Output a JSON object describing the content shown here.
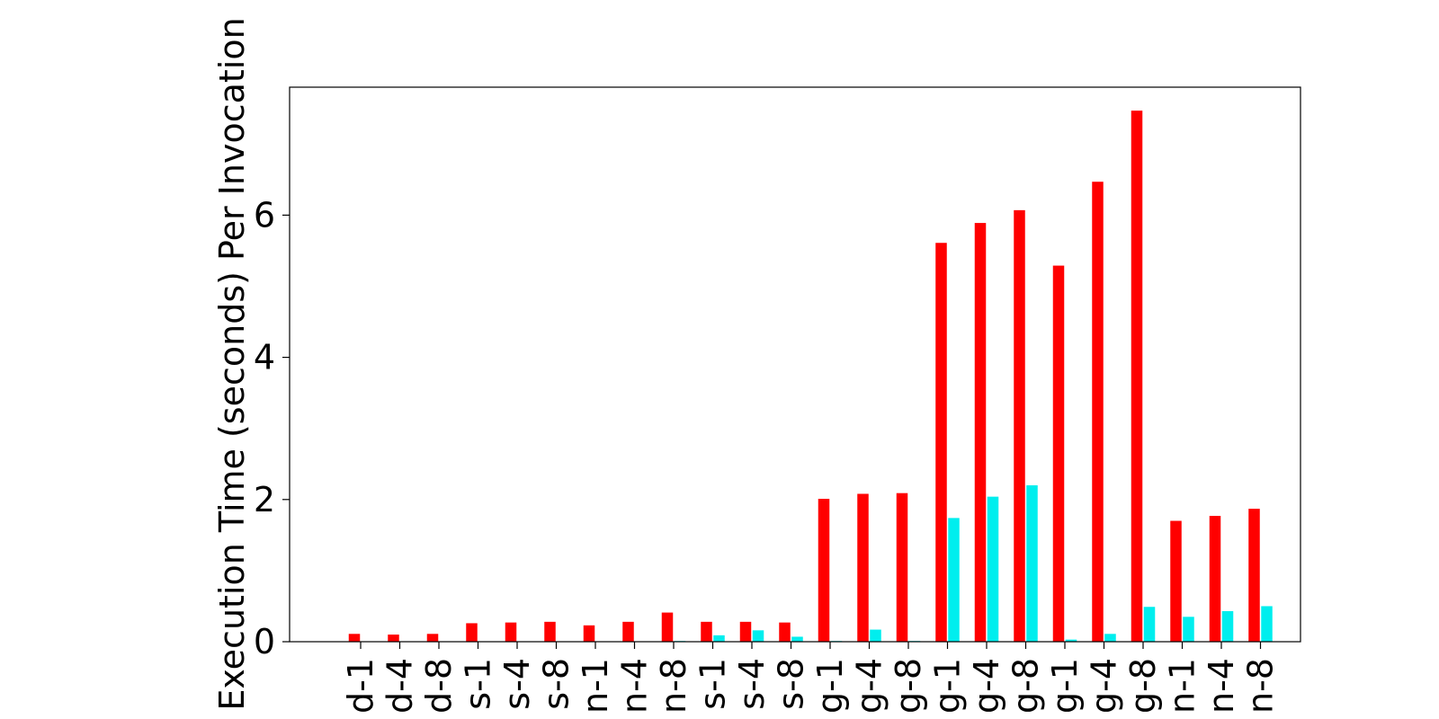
{
  "chart_data": {
    "type": "bar",
    "title": "",
    "xlabel": "",
    "ylabel": "Execution Time (seconds) Per Invocation",
    "ylim": [
      0,
      7.8
    ],
    "yticks": [
      0,
      2,
      4,
      6
    ],
    "grid": false,
    "categories": [
      "d-1",
      "d-4",
      "d-8",
      "s-1",
      "s-4",
      "s-8",
      "n-1",
      "n-4",
      "n-8",
      "s-1",
      "s-4",
      "s-8",
      "g-1",
      "g-4",
      "g-8",
      "g-1",
      "g-4",
      "g-8",
      "g-1",
      "g-4",
      "g-8",
      "n-1",
      "n-4",
      "n-8"
    ],
    "series": [
      {
        "color": "#ff0000",
        "values": [
          0.11,
          0.1,
          0.11,
          0.26,
          0.27,
          0.28,
          0.23,
          0.28,
          0.41,
          0.28,
          0.28,
          0.27,
          2.01,
          2.08,
          2.09,
          5.61,
          5.89,
          6.07,
          5.29,
          6.47,
          7.47,
          1.7,
          1.77,
          1.87
        ]
      },
      {
        "color": "#00eeee",
        "values": [
          0.0,
          0.0,
          0.0,
          0.0,
          0.0,
          0.0,
          0.0,
          0.0,
          0.01,
          0.09,
          0.16,
          0.07,
          0.01,
          0.17,
          0.01,
          1.74,
          2.04,
          2.2,
          0.03,
          0.11,
          0.49,
          0.35,
          0.43,
          0.5
        ]
      }
    ]
  }
}
